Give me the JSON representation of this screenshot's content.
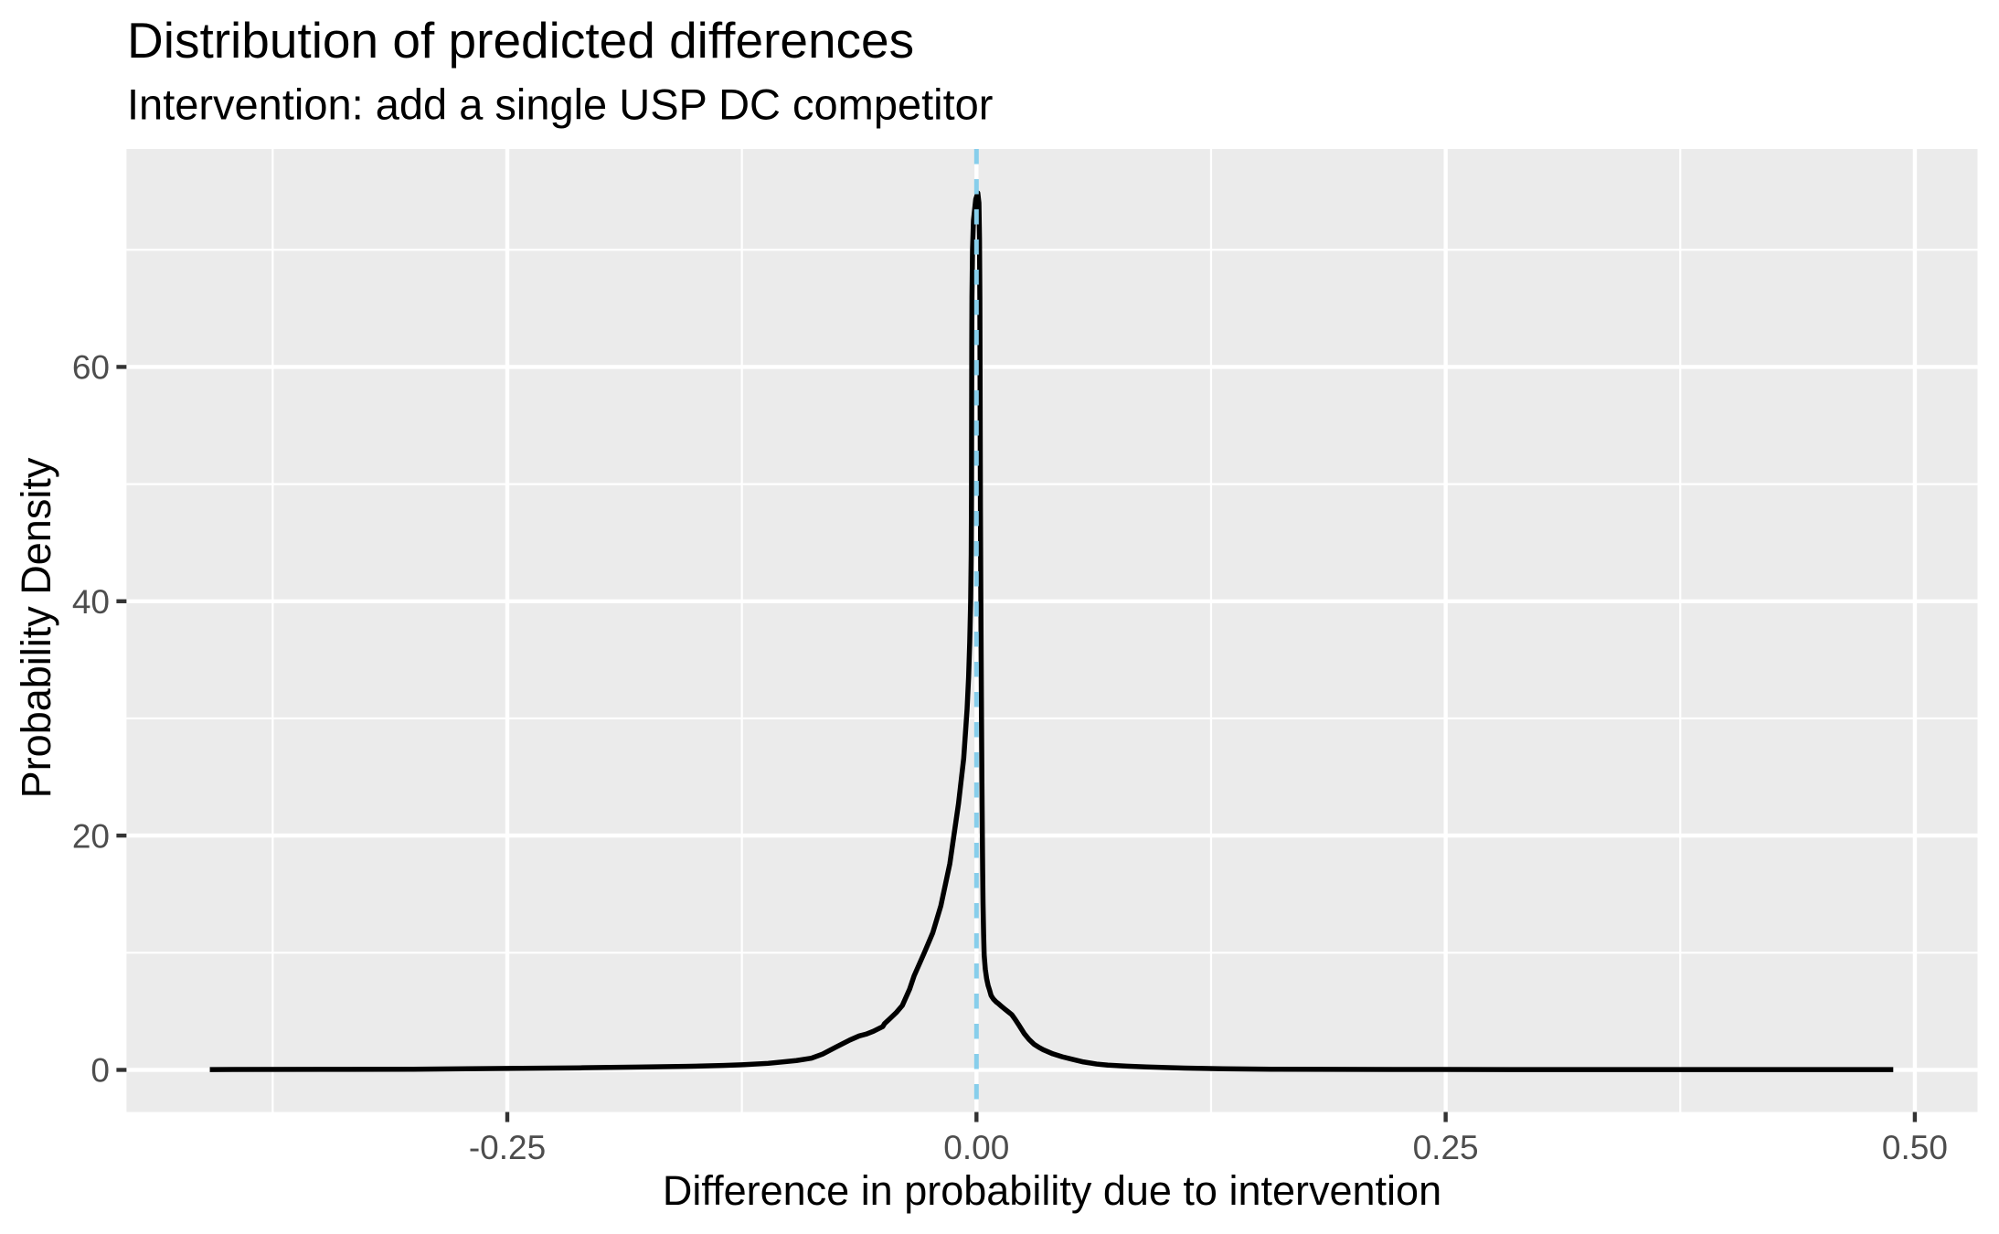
{
  "chart_data": {
    "type": "line",
    "subtype": "density",
    "title": "Distribution of predicted differences",
    "subtitle": "Intervention: add a single USP DC competitor",
    "xlabel": "Difference in probability due to intervention",
    "ylabel": "Probability Density",
    "xlim": [
      -0.4529,
      0.5334
    ],
    "ylim": [
      -3.59,
      78.6
    ],
    "x_ticks": [
      {
        "value": -0.25,
        "label": "-0.25"
      },
      {
        "value": 0.0,
        "label": "0.00"
      },
      {
        "value": 0.25,
        "label": "0.25"
      },
      {
        "value": 0.5,
        "label": "0.50"
      }
    ],
    "y_ticks": [
      {
        "value": 0,
        "label": "0"
      },
      {
        "value": 20,
        "label": "20"
      },
      {
        "value": 40,
        "label": "40"
      },
      {
        "value": 60,
        "label": "60"
      }
    ],
    "x_minor_ticks": [
      -0.375,
      -0.125,
      0.125,
      0.375
    ],
    "y_minor_ticks": [
      10,
      30,
      50,
      70
    ],
    "grid": "on",
    "legend": "none",
    "reference_line": {
      "orientation": "vertical",
      "x": 0.0,
      "style": "dashed",
      "color": "#87CEEB"
    },
    "series": [
      {
        "name": "predicted-difference-density",
        "color": "#000000",
        "points": [
          [
            -0.4085,
            0.03
          ],
          [
            -0.35,
            0.045
          ],
          [
            -0.3,
            0.06
          ],
          [
            -0.25,
            0.13
          ],
          [
            -0.21,
            0.18
          ],
          [
            -0.18,
            0.24
          ],
          [
            -0.155,
            0.3
          ],
          [
            -0.135,
            0.38
          ],
          [
            -0.125,
            0.44
          ],
          [
            -0.111,
            0.56
          ],
          [
            -0.096,
            0.8
          ],
          [
            -0.088,
            1.0
          ],
          [
            -0.082,
            1.35
          ],
          [
            -0.0748,
            1.95
          ],
          [
            -0.0675,
            2.55
          ],
          [
            -0.0625,
            2.9
          ],
          [
            -0.0589,
            3.05
          ],
          [
            -0.0549,
            3.3
          ],
          [
            -0.0499,
            3.7
          ],
          [
            -0.049,
            3.95
          ],
          [
            -0.0463,
            4.35
          ],
          [
            -0.0427,
            4.9
          ],
          [
            -0.0395,
            5.5
          ],
          [
            -0.0356,
            6.9
          ],
          [
            -0.0333,
            8.0
          ],
          [
            -0.0278,
            10.0
          ],
          [
            -0.0233,
            11.7
          ],
          [
            -0.019,
            14.0
          ],
          [
            -0.0142,
            17.6
          ],
          [
            -0.0096,
            22.7
          ],
          [
            -0.0068,
            26.6
          ],
          [
            -0.005,
            30.8
          ],
          [
            -0.0042,
            33.5
          ],
          [
            -0.0036,
            36.5
          ],
          [
            -0.0031,
            40.0
          ],
          [
            -0.0028,
            44.0
          ],
          [
            -0.00265,
            49.0
          ],
          [
            -0.0026,
            54.0
          ],
          [
            -0.00255,
            58.0
          ],
          [
            -0.0025,
            62.0
          ],
          [
            -0.0024,
            66.0
          ],
          [
            -0.0021,
            70.0
          ],
          [
            -0.0016,
            72.5
          ],
          [
            -0.0004,
            74.3
          ],
          [
            0.0007,
            74.85
          ],
          [
            0.0013,
            74.0
          ],
          [
            0.0016,
            71.0
          ],
          [
            0.0018,
            66.0
          ],
          [
            0.0019,
            60.0
          ],
          [
            0.002,
            54.0
          ],
          [
            0.0021,
            48.0
          ],
          [
            0.0023,
            41.0
          ],
          [
            0.0025,
            35.0
          ],
          [
            0.0027,
            29.5
          ],
          [
            0.0029,
            24.5
          ],
          [
            0.0031,
            20.5
          ],
          [
            0.0033,
            17.0
          ],
          [
            0.0035,
            14.2
          ],
          [
            0.0038,
            11.6
          ],
          [
            0.0041,
            9.8
          ],
          [
            0.0047,
            8.6
          ],
          [
            0.0054,
            7.8
          ],
          [
            0.0062,
            7.2
          ],
          [
            0.007,
            6.8
          ],
          [
            0.0078,
            6.35
          ],
          [
            0.009,
            6.05
          ],
          [
            0.0105,
            5.8
          ],
          [
            0.0116,
            5.67
          ],
          [
            0.0135,
            5.4
          ],
          [
            0.0152,
            5.18
          ],
          [
            0.017,
            4.95
          ],
          [
            0.0188,
            4.72
          ],
          [
            0.0205,
            4.34
          ],
          [
            0.0225,
            3.85
          ],
          [
            0.0255,
            3.09
          ],
          [
            0.028,
            2.6
          ],
          [
            0.0306,
            2.2
          ],
          [
            0.033,
            1.95
          ],
          [
            0.0356,
            1.72
          ],
          [
            0.0407,
            1.37
          ],
          [
            0.0457,
            1.12
          ],
          [
            0.0507,
            0.92
          ],
          [
            0.057,
            0.68
          ],
          [
            0.064,
            0.5
          ],
          [
            0.07,
            0.41
          ],
          [
            0.08,
            0.32
          ],
          [
            0.0905,
            0.25
          ],
          [
            0.111,
            0.15
          ],
          [
            0.1314,
            0.1
          ],
          [
            0.157,
            0.06
          ],
          [
            0.19,
            0.045
          ],
          [
            0.25,
            0.035
          ],
          [
            0.33,
            0.03
          ],
          [
            0.42,
            0.03
          ],
          [
            0.4885,
            0.03
          ]
        ]
      }
    ],
    "colors": {
      "panel_background": "#EBEBEB",
      "grid_line": "#FFFFFF",
      "curve": "#000000",
      "reference_line": "#87CEEB",
      "tick_mark": "#333333",
      "tick_label": "#4D4D4D",
      "text": "#000000",
      "figure_background": "#FFFFFF"
    }
  }
}
